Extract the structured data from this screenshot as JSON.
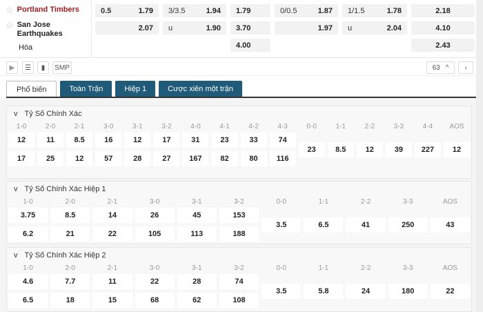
{
  "teams": {
    "home": "Portland Timbers",
    "away": "San Jose Earthquakes",
    "draw": "Hòa"
  },
  "odds": {
    "hdp": {
      "line": "0.5",
      "home": "1.79",
      "away": "2.07"
    },
    "ou": {
      "line": "3/3.5",
      "over": "1.94",
      "under_label": "u",
      "under": "1.90"
    },
    "x12": {
      "home": "1.79",
      "away": "3.70",
      "draw": "4.00"
    },
    "h1_hdp": {
      "line": "0/0.5",
      "home": "1.87",
      "away": "1.97"
    },
    "h1_ou": {
      "line": "1/1.5",
      "over": "1.78",
      "under_label": "u",
      "under": "2.04"
    },
    "h1_x12": {
      "home": "2.18",
      "away": "4.10",
      "draw": "2.43"
    }
  },
  "toolbar": {
    "smp": "SMP",
    "count": "63"
  },
  "tabs": [
    "Phổ biến",
    "Toàn Trận",
    "Hiệp 1",
    "Cược xiên một trận"
  ],
  "sections": [
    {
      "title": "Tỷ Số Chính Xác",
      "pairs": [
        [
          "1-0",
          "12",
          "17"
        ],
        [
          "2-0",
          "11",
          "25"
        ],
        [
          "2-1",
          "8.5",
          "12"
        ],
        [
          "3-0",
          "16",
          "57"
        ],
        [
          "3-1",
          "12",
          "28"
        ],
        [
          "3-2",
          "17",
          "27"
        ],
        [
          "4-0",
          "31",
          "167"
        ],
        [
          "4-1",
          "23",
          "82"
        ],
        [
          "4-2",
          "33",
          "80"
        ],
        [
          "4-3",
          "74",
          "116"
        ]
      ],
      "singles": [
        [
          "0-0",
          "23"
        ],
        [
          "1-1",
          "8.5"
        ],
        [
          "2-2",
          "12"
        ],
        [
          "3-3",
          "39"
        ],
        [
          "4-4",
          "227"
        ],
        [
          "AOS",
          "12"
        ]
      ]
    },
    {
      "title": "Tỷ Số Chính Xác Hiệp 1",
      "pairs": [
        [
          "1-0",
          "3.75",
          "6.2"
        ],
        [
          "2-0",
          "8.5",
          "21"
        ],
        [
          "2-1",
          "14",
          "22"
        ],
        [
          "3-0",
          "26",
          "105"
        ],
        [
          "3-1",
          "45",
          "113"
        ],
        [
          "3-2",
          "153",
          "188"
        ]
      ],
      "singles": [
        [
          "0-0",
          "3.5"
        ],
        [
          "1-1",
          "6.5"
        ],
        [
          "2-2",
          "41"
        ],
        [
          "3-3",
          "250"
        ],
        [
          "AOS",
          "43"
        ]
      ]
    },
    {
      "title": "Tỷ Số Chính Xác Hiệp 2",
      "pairs": [
        [
          "1-0",
          "4.6",
          "6.5"
        ],
        [
          "2-0",
          "7.7",
          "18"
        ],
        [
          "2-1",
          "11",
          "15"
        ],
        [
          "3-0",
          "22",
          "68"
        ],
        [
          "3-1",
          "28",
          "62"
        ],
        [
          "3-2",
          "74",
          "108"
        ]
      ],
      "singles": [
        [
          "0-0",
          "3.5"
        ],
        [
          "1-1",
          "5.8"
        ],
        [
          "2-2",
          "24"
        ],
        [
          "3-3",
          "180"
        ],
        [
          "AOS",
          "22"
        ]
      ]
    }
  ]
}
